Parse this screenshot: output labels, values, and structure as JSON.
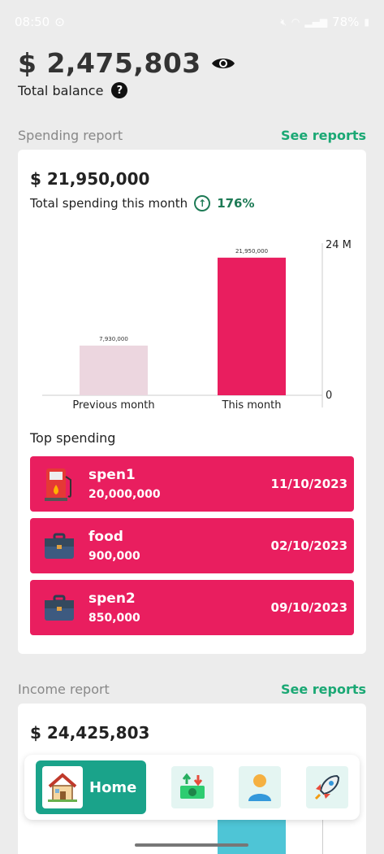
{
  "status": {
    "time": "08:50",
    "battery": "78%"
  },
  "balance": {
    "amount": "$ 2,475,803",
    "label": "Total balance",
    "help": "?"
  },
  "spending": {
    "section_title": "Spending report",
    "see_reports": "See reports",
    "amount": "$ 21,950,000",
    "subtitle": "Total spending this month",
    "percent": "176%",
    "items_title": "Top spending",
    "items": [
      {
        "name": "spen1",
        "amount": "20,000,000",
        "date": "11/10/2023",
        "icon": "fuel-icon"
      },
      {
        "name": "food",
        "amount": "900,000",
        "date": "02/10/2023",
        "icon": "briefcase-icon"
      },
      {
        "name": "spen2",
        "amount": "850,000",
        "date": "09/10/2023",
        "icon": "briefcase-icon"
      }
    ]
  },
  "chart_data": {
    "type": "bar",
    "categories": [
      "Previous month",
      "This month"
    ],
    "values": [
      7930000,
      21950000
    ],
    "value_labels": [
      "7,930,000",
      "21,950,000"
    ],
    "colors": [
      "#ecd6df",
      "#e91e5f"
    ],
    "ylim": [
      0,
      24000000
    ],
    "y_tick_labels": [
      "0",
      "24 M"
    ],
    "y_axis_side": "right"
  },
  "income": {
    "section_title": "Income report",
    "see_reports": "See reports",
    "amount": "$ 24,425,803"
  },
  "nav": {
    "home_label": "Home",
    "icons": [
      "home-icon",
      "money-transfer-icon",
      "user-icon",
      "rocket-icon"
    ]
  }
}
